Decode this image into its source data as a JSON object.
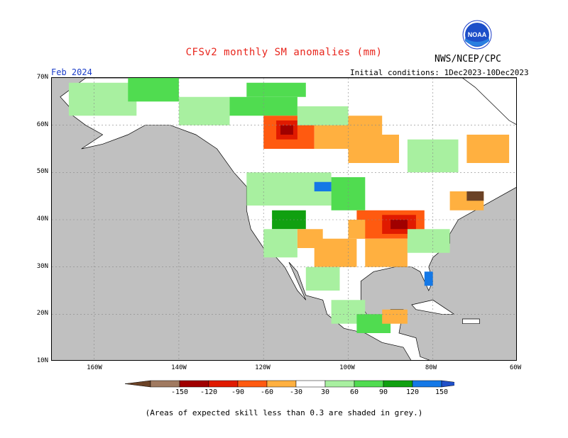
{
  "title": "CFSv2 monthly SM anomalies (mm)",
  "agency": "NWS/NCEP/CPC",
  "logo_text": "NOAA",
  "target_month": "Feb 2024",
  "initial_conditions": "Initial conditions: 1Dec2023-10Dec2023",
  "lat_labels": [
    "70N",
    "60N",
    "50N",
    "40N",
    "30N",
    "20N",
    "10N"
  ],
  "lon_labels": [
    "160W",
    "140W",
    "120W",
    "100W",
    "80W",
    "60W"
  ],
  "legend": {
    "ticks": [
      "-150",
      "-120",
      "-90",
      "-60",
      "-30",
      "30",
      "60",
      "90",
      "120",
      "150"
    ],
    "colors": {
      "lt_m150": "#6b4226",
      "m150_m120": "#a07a60",
      "m120_m90": "#a00000",
      "m90_m60": "#e01a00",
      "m60_m30": "#ff5a10",
      "m30_m10": "#ffb040",
      "neutral": "#ffffff",
      "p30_p60": "#a8f0a0",
      "p60_p90": "#50dc50",
      "p90_p120": "#10a010",
      "p120_p150": "#1478e6",
      "gt_p150": "#2050c8"
    }
  },
  "map_colors": {
    "ocean": "#ffffff",
    "land_skill_low": "#c0c0c0",
    "grid": "#888888",
    "border": "#000000"
  },
  "note": "(Areas of expected skill less than 0.3 are shaded in grey.)"
}
